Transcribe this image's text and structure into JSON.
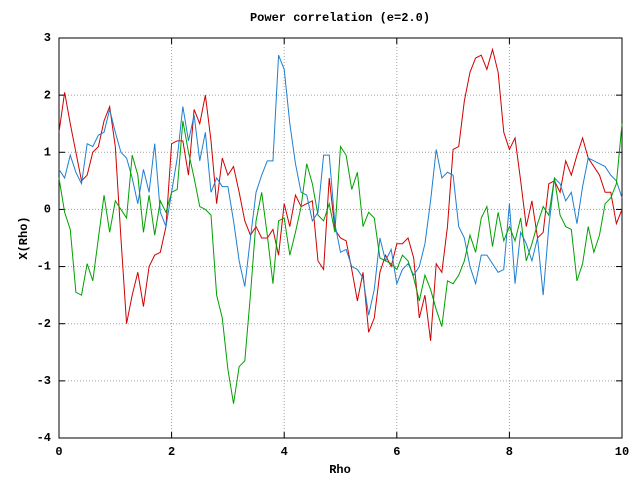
{
  "chart_data": {
    "type": "line",
    "title": "Power correlation (e=2.0)",
    "xlabel": "Rho",
    "ylabel": "X(Rho)",
    "x": [
      0,
      0.1,
      0.2,
      0.3,
      0.4,
      0.5,
      0.6,
      0.7,
      0.8,
      0.9,
      1,
      1.1,
      1.2,
      1.3,
      1.4,
      1.5,
      1.6,
      1.7,
      1.8,
      1.9,
      2,
      2.1,
      2.2,
      2.3,
      2.4,
      2.5,
      2.6,
      2.7,
      2.8,
      2.9,
      3,
      3.1,
      3.2,
      3.3,
      3.4,
      3.5,
      3.6,
      3.7,
      3.8,
      3.9,
      4,
      4.1,
      4.2,
      4.3,
      4.4,
      4.5,
      4.6,
      4.7,
      4.8,
      4.9,
      5,
      5.1,
      5.2,
      5.3,
      5.4,
      5.5,
      5.6,
      5.7,
      5.8,
      5.9,
      6,
      6.1,
      6.2,
      6.3,
      6.4,
      6.5,
      6.6,
      6.7,
      6.8,
      6.9,
      7,
      7.1,
      7.2,
      7.3,
      7.4,
      7.5,
      7.6,
      7.7,
      7.8,
      7.9,
      8,
      8.1,
      8.2,
      8.3,
      8.4,
      8.5,
      8.6,
      8.7,
      8.8,
      8.9,
      9,
      9.1,
      9.2,
      9.3,
      9.4,
      9.5,
      9.6,
      9.7,
      9.8,
      9.9,
      10
    ],
    "series": [
      {
        "color": "#d00000",
        "values": [
          1.35,
          2.05,
          1.5,
          1.0,
          0.5,
          0.6,
          1.0,
          1.1,
          1.55,
          1.8,
          1.1,
          -0.5,
          -2.0,
          -1.5,
          -1.1,
          -1.7,
          -1.0,
          -0.8,
          -0.75,
          -0.3,
          1.15,
          1.2,
          1.2,
          0.6,
          1.75,
          1.5,
          2.0,
          1.2,
          0.1,
          0.9,
          0.6,
          0.75,
          0.3,
          -0.2,
          -0.45,
          -0.3,
          -0.5,
          -0.5,
          -0.35,
          -0.8,
          0.1,
          -0.3,
          0.25,
          0.05,
          0.1,
          0.15,
          -0.9,
          -1.05,
          0.55,
          -0.35,
          -0.5,
          -0.55,
          -1.05,
          -1.6,
          -1.1,
          -2.15,
          -1.9,
          -1.1,
          -0.8,
          -1.0,
          -0.6,
          -0.6,
          -0.5,
          -0.85,
          -1.9,
          -1.5,
          -2.3,
          -0.95,
          -1.1,
          -0.3,
          1.05,
          1.1,
          1.9,
          2.4,
          2.65,
          2.7,
          2.45,
          2.8,
          2.4,
          1.35,
          1.05,
          1.25,
          0.5,
          -0.3,
          0.15,
          -0.5,
          -0.4,
          0.45,
          0.5,
          0.3,
          0.85,
          0.6,
          0.95,
          1.25,
          0.9,
          0.75,
          0.6,
          0.3,
          0.3,
          -0.25,
          0.0
        ]
      },
      {
        "color": "#1f7fd0",
        "values": [
          0.7,
          0.55,
          0.95,
          0.65,
          0.45,
          1.15,
          1.1,
          1.3,
          1.35,
          1.75,
          1.35,
          1.0,
          0.9,
          0.55,
          0.1,
          0.7,
          0.3,
          1.15,
          -0.05,
          -0.3,
          0.3,
          0.9,
          1.8,
          1.2,
          1.65,
          0.85,
          1.35,
          0.3,
          0.55,
          0.4,
          0.4,
          -0.2,
          -0.9,
          -1.35,
          -0.5,
          0.3,
          0.6,
          0.85,
          0.85,
          2.7,
          2.45,
          1.5,
          0.8,
          0.3,
          0.25,
          -0.2,
          -0.05,
          0.95,
          0.95,
          -0.25,
          -0.75,
          -0.7,
          -1.0,
          -1.05,
          -1.2,
          -1.85,
          -1.4,
          -0.5,
          -0.9,
          -0.7,
          -1.3,
          -1.05,
          -0.95,
          -1.15,
          -1.0,
          -0.6,
          0.15,
          1.05,
          0.55,
          0.65,
          0.6,
          -0.3,
          -0.5,
          -1.0,
          -1.3,
          -0.8,
          -0.8,
          -0.95,
          -1.1,
          -1.05,
          0.1,
          -1.3,
          -0.4,
          -0.6,
          -0.9,
          -0.5,
          -1.5,
          -0.3,
          0.55,
          0.45,
          0.15,
          0.3,
          -0.25,
          0.4,
          0.9,
          0.85,
          0.8,
          0.75,
          0.6,
          0.5,
          0.2
        ]
      },
      {
        "color": "#00a000",
        "values": [
          0.55,
          -0.05,
          -0.35,
          -1.45,
          -1.5,
          -0.95,
          -1.25,
          -0.5,
          0.25,
          -0.4,
          0.15,
          0.0,
          -0.15,
          0.95,
          0.6,
          -0.4,
          0.25,
          -0.45,
          0.15,
          -0.05,
          0.3,
          0.35,
          1.55,
          1.0,
          0.55,
          0.05,
          0.0,
          -0.1,
          -1.5,
          -1.9,
          -2.8,
          -3.4,
          -2.75,
          -2.65,
          -1.5,
          -0.2,
          0.3,
          -0.45,
          -1.3,
          -0.2,
          -0.15,
          -0.8,
          -0.4,
          0.05,
          0.8,
          0.45,
          -0.1,
          -0.2,
          0.1,
          -0.4,
          1.1,
          0.95,
          0.35,
          0.65,
          -0.3,
          -0.05,
          -0.15,
          -0.85,
          -0.9,
          -0.95,
          -1.05,
          -0.8,
          -0.9,
          -1.2,
          -1.6,
          -1.15,
          -1.4,
          -1.75,
          -2.05,
          -1.25,
          -1.3,
          -1.15,
          -0.9,
          -0.45,
          -0.75,
          -0.15,
          0.05,
          -0.65,
          -0.05,
          -0.55,
          -0.3,
          -0.55,
          -0.15,
          -0.9,
          -0.6,
          -0.25,
          0.05,
          -0.1,
          0.55,
          -0.1,
          -0.3,
          -0.35,
          -1.25,
          -0.95,
          -0.3,
          -0.75,
          -0.45,
          0.1,
          0.2,
          0.45,
          1.5
        ]
      }
    ],
    "xlim": [
      0,
      10
    ],
    "xticks": [
      0,
      2,
      4,
      6,
      8,
      10
    ],
    "ylim": [
      -4,
      3
    ],
    "yticks": [
      -4,
      -3,
      -2,
      -1,
      0,
      1,
      2,
      3
    ],
    "grid": true
  }
}
